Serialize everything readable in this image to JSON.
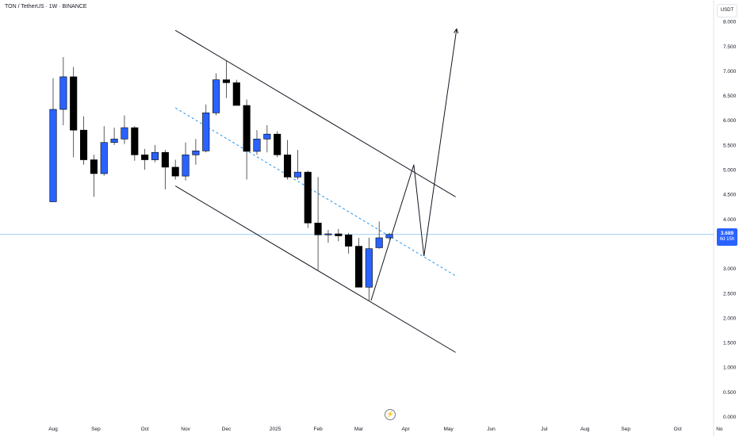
{
  "header": {
    "symbol_line": "TON / TetherUS · 1W · BINANCE"
  },
  "axis": {
    "currency": "USDT",
    "last_price": "3.689",
    "countdown": "6d 15h"
  },
  "chart_data": {
    "type": "candlestick",
    "title": "TON / TetherUS · 1W · BINANCE",
    "ylim": [
      0,
      8.2
    ],
    "y_ticks": [
      "0.000",
      "0.500",
      "1.000",
      "1.500",
      "2.000",
      "2.500",
      "3.000",
      "3.500",
      "4.000",
      "4.500",
      "5.000",
      "5.500",
      "6.000",
      "6.500",
      "7.000",
      "7.500",
      "8.000"
    ],
    "x_ticks": [
      {
        "label": "Aug",
        "w": 0
      },
      {
        "label": "Sep",
        "w": 4.2
      },
      {
        "label": "Oct",
        "w": 9.0
      },
      {
        "label": "Nov",
        "w": 13
      },
      {
        "label": "Dec",
        "w": 17
      },
      {
        "label": "2025",
        "w": 21.8
      },
      {
        "label": "Feb",
        "w": 26
      },
      {
        "label": "Mar",
        "w": 30
      },
      {
        "label": "Apr",
        "w": 34.6
      },
      {
        "label": "May",
        "w": 38.8
      },
      {
        "label": "Jun",
        "w": 43
      },
      {
        "label": "Jul",
        "w": 48.2
      },
      {
        "label": "Aug",
        "w": 52.2
      },
      {
        "label": "Sep",
        "w": 56.2
      },
      {
        "label": "Oct",
        "w": 61.3
      },
      {
        "label": "No",
        "w": 65.4
      }
    ],
    "candles": [
      {
        "o": 4.35,
        "h": 6.85,
        "l": 4.35,
        "c": 6.22
      },
      {
        "o": 6.22,
        "h": 7.28,
        "l": 5.9,
        "c": 6.88
      },
      {
        "o": 6.88,
        "h": 7.08,
        "l": 5.25,
        "c": 5.8
      },
      {
        "o": 5.8,
        "h": 6.08,
        "l": 5.1,
        "c": 5.2
      },
      {
        "o": 5.2,
        "h": 5.3,
        "l": 4.45,
        "c": 4.92
      },
      {
        "o": 4.92,
        "h": 5.88,
        "l": 4.88,
        "c": 5.55
      },
      {
        "o": 5.55,
        "h": 5.85,
        "l": 5.5,
        "c": 5.62
      },
      {
        "o": 5.62,
        "h": 6.1,
        "l": 5.52,
        "c": 5.85
      },
      {
        "o": 5.85,
        "h": 5.88,
        "l": 5.18,
        "c": 5.3
      },
      {
        "o": 5.3,
        "h": 5.42,
        "l": 5.0,
        "c": 5.2
      },
      {
        "o": 5.2,
        "h": 5.5,
        "l": 5.15,
        "c": 5.35
      },
      {
        "o": 5.35,
        "h": 5.4,
        "l": 4.6,
        "c": 5.05
      },
      {
        "o": 5.05,
        "h": 5.2,
        "l": 4.8,
        "c": 4.87
      },
      {
        "o": 4.87,
        "h": 5.55,
        "l": 4.78,
        "c": 5.3
      },
      {
        "o": 5.3,
        "h": 5.62,
        "l": 5.1,
        "c": 5.38
      },
      {
        "o": 5.38,
        "h": 6.32,
        "l": 5.35,
        "c": 6.15
      },
      {
        "o": 6.15,
        "h": 6.95,
        "l": 6.1,
        "c": 6.82
      },
      {
        "o": 6.82,
        "h": 7.2,
        "l": 6.45,
        "c": 6.76
      },
      {
        "o": 6.76,
        "h": 6.82,
        "l": 6.32,
        "c": 6.3
      },
      {
        "o": 6.3,
        "h": 6.42,
        "l": 4.8,
        "c": 5.37
      },
      {
        "o": 5.37,
        "h": 5.8,
        "l": 5.3,
        "c": 5.62
      },
      {
        "o": 5.62,
        "h": 5.9,
        "l": 5.35,
        "c": 5.72
      },
      {
        "o": 5.72,
        "h": 5.78,
        "l": 5.25,
        "c": 5.3
      },
      {
        "o": 5.3,
        "h": 5.6,
        "l": 4.8,
        "c": 4.85
      },
      {
        "o": 4.85,
        "h": 5.4,
        "l": 4.8,
        "c": 4.95
      },
      {
        "o": 4.95,
        "h": 4.98,
        "l": 3.82,
        "c": 3.92
      },
      {
        "o": 3.92,
        "h": 4.85,
        "l": 2.95,
        "c": 3.68
      },
      {
        "o": 3.68,
        "h": 3.78,
        "l": 3.52,
        "c": 3.7
      },
      {
        "o": 3.7,
        "h": 3.8,
        "l": 3.55,
        "c": 3.66
      },
      {
        "o": 3.68,
        "h": 3.72,
        "l": 3.3,
        "c": 3.45
      },
      {
        "o": 3.45,
        "h": 3.62,
        "l": 2.62,
        "c": 2.62
      },
      {
        "o": 2.62,
        "h": 3.62,
        "l": 2.35,
        "c": 3.4
      },
      {
        "o": 3.42,
        "h": 3.95,
        "l": 3.4,
        "c": 3.62
      },
      {
        "o": 3.62,
        "h": 3.72,
        "l": 3.58,
        "c": 3.689
      }
    ],
    "last_price": 3.689,
    "drawings": [
      {
        "name": "channel-upper-line",
        "style": "solid",
        "color": "#131722",
        "points": [
          [
            12.0,
            7.82
          ],
          [
            39.5,
            4.45
          ]
        ]
      },
      {
        "name": "channel-lower-line",
        "style": "solid",
        "color": "#131722",
        "points": [
          [
            12.0,
            4.67
          ],
          [
            39.5,
            1.3
          ]
        ]
      },
      {
        "name": "channel-midline",
        "style": "dashed",
        "color": "#2196f3",
        "points": [
          [
            12.0,
            6.25
          ],
          [
            39.5,
            2.85
          ]
        ]
      },
      {
        "name": "projection-path",
        "style": "solid",
        "color": "#131722",
        "points": [
          [
            31.2,
            2.35
          ],
          [
            35.4,
            5.1
          ],
          [
            36.4,
            3.25
          ],
          [
            39.6,
            7.85
          ]
        ]
      }
    ],
    "colors": {
      "up": "#2962ff",
      "down": "#000000",
      "price_line": "#90caf9",
      "bg": "#ffffff"
    },
    "grid": false
  }
}
